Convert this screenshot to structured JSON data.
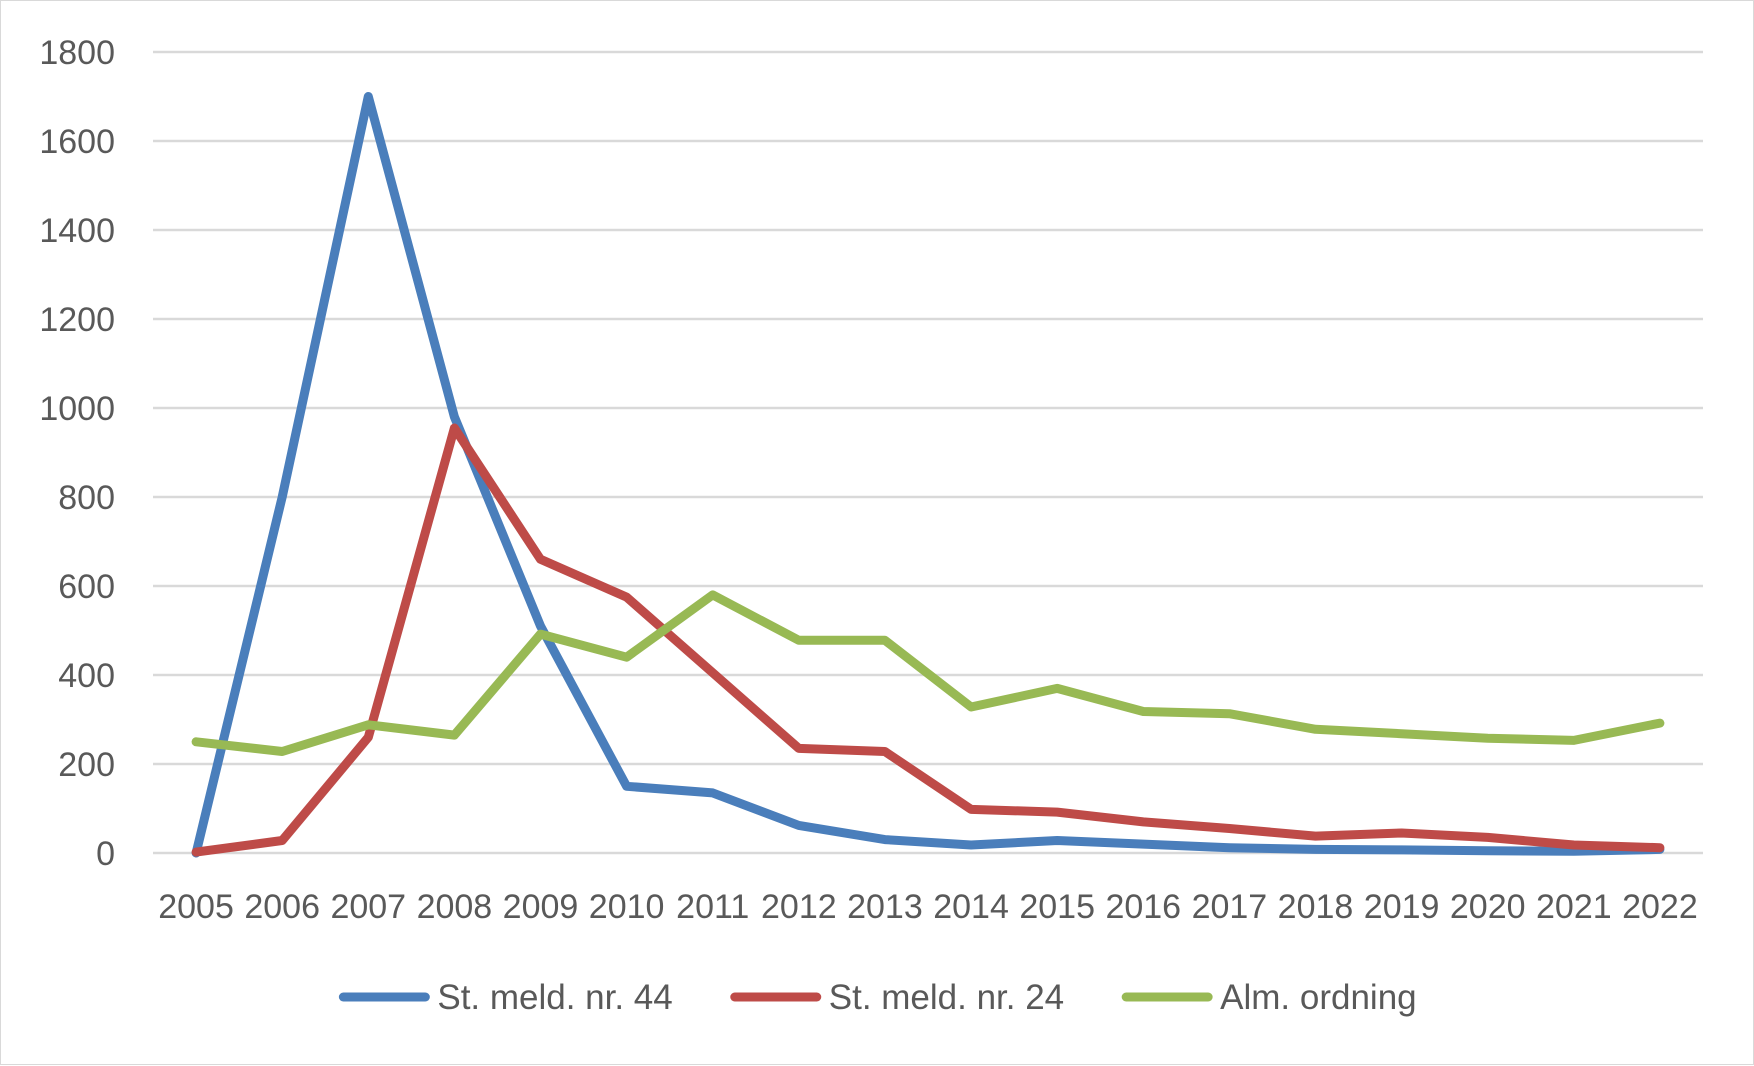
{
  "chart_data": {
    "type": "line",
    "title": "",
    "xlabel": "",
    "ylabel": "",
    "categories": [
      "2005",
      "2006",
      "2007",
      "2008",
      "2009",
      "2010",
      "2011",
      "2012",
      "2013",
      "2014",
      "2015",
      "2016",
      "2017",
      "2018",
      "2019",
      "2020",
      "2021",
      "2022"
    ],
    "ylim": [
      0,
      1800
    ],
    "yticks": [
      0,
      200,
      400,
      600,
      800,
      1000,
      1200,
      1400,
      1600,
      1800
    ],
    "grid": true,
    "legend_position": "bottom",
    "series": [
      {
        "name": "St. meld. nr. 44",
        "color": "#4a7ebb",
        "values": [
          0,
          800,
          1700,
          980,
          510,
          150,
          135,
          62,
          30,
          18,
          28,
          20,
          12,
          8,
          7,
          5,
          4,
          8
        ]
      },
      {
        "name": "St. meld. nr. 24",
        "color": "#be4b48",
        "values": [
          2,
          28,
          260,
          955,
          660,
          575,
          405,
          235,
          228,
          98,
          92,
          70,
          55,
          38,
          45,
          35,
          18,
          12
        ]
      },
      {
        "name": "Alm. ordning",
        "color": "#98b954",
        "values": [
          250,
          228,
          288,
          265,
          492,
          440,
          580,
          478,
          478,
          328,
          370,
          318,
          313,
          278,
          268,
          258,
          253,
          292
        ]
      }
    ]
  }
}
